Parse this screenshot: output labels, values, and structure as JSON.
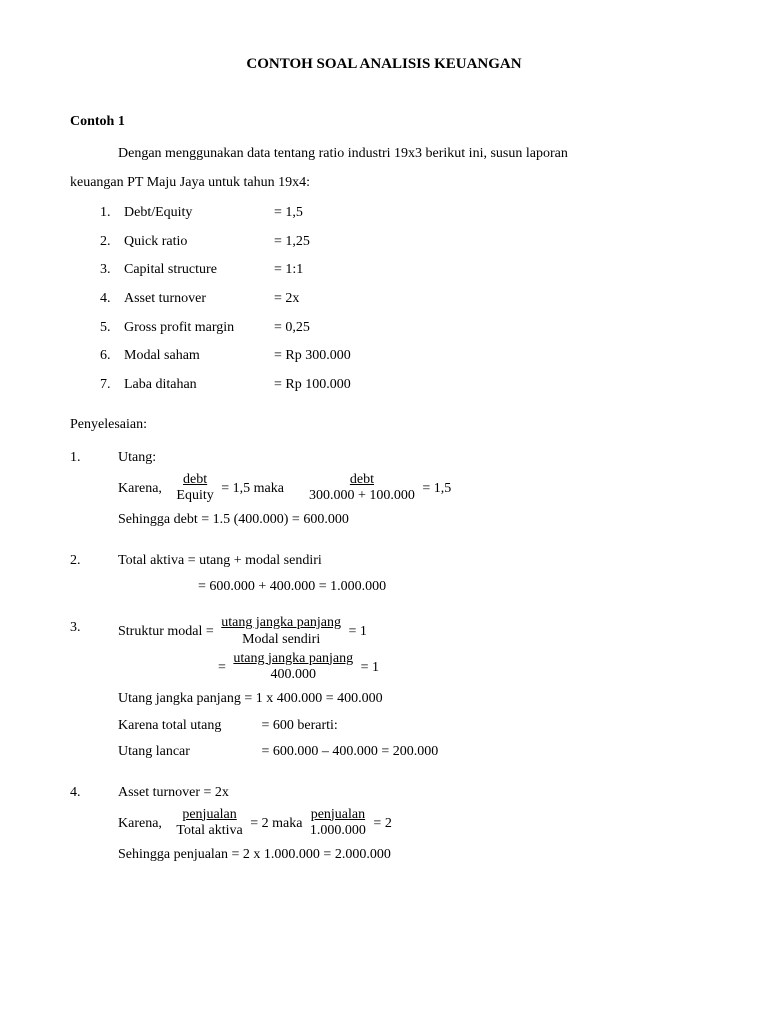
{
  "title": "CONTOH  SOAL ANALISIS KEUANGAN",
  "example_header": "Contoh 1",
  "intro_line1": "Dengan menggunakan data tentang ratio industri 19x3 berikut ini, susun laporan",
  "intro_line2": "keuangan PT Maju Jaya untuk tahun 19x4:",
  "ratios": [
    {
      "n": "1.",
      "label": "Debt/Equity",
      "value": "= 1,5"
    },
    {
      "n": "2.",
      "label": "Quick ratio",
      "value": "= 1,25"
    },
    {
      "n": "3.",
      "label": "Capital structure",
      "value": "= 1:1"
    },
    {
      "n": "4.",
      "label": "Asset turnover",
      "value": "= 2x"
    },
    {
      "n": "5.",
      "label": "Gross profit margin",
      "value": "= 0,25"
    },
    {
      "n": "6.",
      "label": "Modal saham",
      "value": "= Rp 300.000"
    },
    {
      "n": "7.",
      "label": "Laba ditahan",
      "value": "= Rp 100.000"
    }
  ],
  "penyelesaian_label": "Penyelesaian:",
  "sol1": {
    "num": "1.",
    "header": "Utang:",
    "karena": "Karena,",
    "frac1_top": "debt",
    "frac1_bot": "Equity",
    "mid1": " = 1,5 maka ",
    "frac2_top": "debt",
    "frac2_bot": "300.000 + 100.000",
    "mid2": " = 1,5",
    "result": "Sehingga debt = 1.5 (400.000) = 600.000"
  },
  "sol2": {
    "num": "2.",
    "line1": "Total aktiva = utang + modal sendiri",
    "line2": "= 600.000 + 400.000 = 1.000.000"
  },
  "sol3": {
    "num": "3.",
    "line1_pre": "Struktur modal = ",
    "frac1_top": "utang jangka panjang",
    "frac1_bot": "Modal sendiri",
    "line1_post": " = 1",
    "line2_pre": "= ",
    "frac2_top": "utang jangka panjang",
    "frac2_bot": "400.000",
    "line2_post": " = 1",
    "line3": "Utang jangka panjang = 1 x 400.000 = 400.000",
    "line4_a": "Karena total utang",
    "line4_b": "= 600 berarti:",
    "line5_a": "Utang lancar",
    "line5_b": "= 600.000 – 400.000 = 200.000"
  },
  "sol4": {
    "num": "4.",
    "line1": "Asset turnover = 2x",
    "karena": "Karena,",
    "frac1_top": "penjualan",
    "frac1_bot": "Total aktiva",
    "mid1": " = 2 maka ",
    "frac2_top": "penjualan",
    "frac2_bot": "1.000.000",
    "mid2": " = 2",
    "result": "Sehingga penjualan = 2 x 1.000.000 = 2.000.000"
  }
}
